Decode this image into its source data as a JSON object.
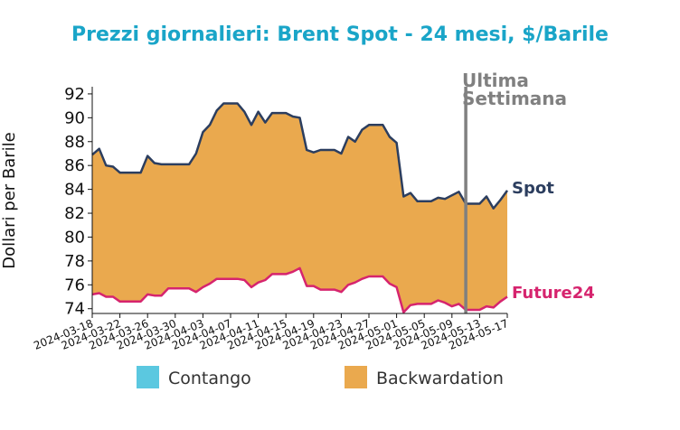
{
  "chart_data": {
    "type": "area",
    "title": "Prezzi giornalieri: Brent Spot - 24 mesi, $/Barile",
    "ylabel": "Dollari per Barile",
    "xlabel": "",
    "ylim": [
      73.6,
      92.6
    ],
    "yticks": [
      74,
      76,
      78,
      80,
      82,
      84,
      86,
      88,
      90,
      92
    ],
    "xticks": [
      "2024-03-18",
      "2024-03-22",
      "2024-03-26",
      "2024-03-30",
      "2024-04-03",
      "2024-04-07",
      "2024-04-11",
      "2024-04-15",
      "2024-04-19",
      "2024-04-23",
      "2024-04-27",
      "2024-05-01",
      "2024-05-05",
      "2024-05-09",
      "2024-05-13",
      "2024-05-17"
    ],
    "x": [
      "2024-03-18",
      "2024-03-19",
      "2024-03-20",
      "2024-03-21",
      "2024-03-22",
      "2024-03-23",
      "2024-03-24",
      "2024-03-25",
      "2024-03-26",
      "2024-03-27",
      "2024-03-28",
      "2024-03-29",
      "2024-03-30",
      "2024-03-31",
      "2024-04-01",
      "2024-04-02",
      "2024-04-03",
      "2024-04-04",
      "2024-04-05",
      "2024-04-06",
      "2024-04-07",
      "2024-04-08",
      "2024-04-09",
      "2024-04-10",
      "2024-04-11",
      "2024-04-12",
      "2024-04-13",
      "2024-04-14",
      "2024-04-15",
      "2024-04-16",
      "2024-04-17",
      "2024-04-18",
      "2024-04-19",
      "2024-04-20",
      "2024-04-21",
      "2024-04-22",
      "2024-04-23",
      "2024-04-24",
      "2024-04-25",
      "2024-04-26",
      "2024-04-27",
      "2024-04-28",
      "2024-04-29",
      "2024-04-30",
      "2024-05-01",
      "2024-05-02",
      "2024-05-03",
      "2024-05-04",
      "2024-05-05",
      "2024-05-06",
      "2024-05-07",
      "2024-05-08",
      "2024-05-09",
      "2024-05-10",
      "2024-05-11",
      "2024-05-12",
      "2024-05-13",
      "2024-05-14",
      "2024-05-15",
      "2024-05-16",
      "2024-05-17"
    ],
    "series": [
      {
        "name": "Spot",
        "color": "#2c3e5f",
        "values": [
          86.9,
          87.4,
          86.0,
          85.9,
          85.4,
          85.4,
          85.4,
          85.4,
          86.8,
          86.2,
          86.1,
          86.1,
          86.1,
          86.1,
          86.1,
          87.0,
          88.8,
          89.4,
          90.6,
          91.2,
          91.2,
          91.2,
          90.5,
          89.4,
          90.5,
          89.6,
          90.4,
          90.4,
          90.4,
          90.1,
          90.0,
          87.3,
          87.1,
          87.3,
          87.3,
          87.3,
          87.0,
          88.4,
          88.0,
          89.0,
          89.4,
          89.4,
          89.4,
          88.4,
          87.9,
          83.4,
          83.7,
          83.0,
          83.0,
          83.0,
          83.3,
          83.2,
          83.5,
          83.8,
          82.8,
          82.8,
          82.8,
          83.4,
          82.4,
          83.1,
          83.9
        ]
      },
      {
        "name": "Future24",
        "color": "#d6246e",
        "values": [
          75.2,
          75.3,
          75.0,
          75.0,
          74.6,
          74.6,
          74.6,
          74.6,
          75.2,
          75.1,
          75.1,
          75.7,
          75.7,
          75.7,
          75.7,
          75.4,
          75.8,
          76.1,
          76.5,
          76.5,
          76.5,
          76.5,
          76.4,
          75.8,
          76.2,
          76.4,
          76.9,
          76.9,
          76.9,
          77.1,
          77.4,
          75.9,
          75.9,
          75.6,
          75.6,
          75.6,
          75.4,
          76.0,
          76.2,
          76.5,
          76.7,
          76.7,
          76.7,
          76.1,
          75.8,
          73.7,
          74.3,
          74.4,
          74.4,
          74.4,
          74.7,
          74.5,
          74.2,
          74.4,
          73.9,
          73.9,
          73.9,
          74.2,
          74.1,
          74.6,
          75.0
        ]
      }
    ],
    "fill_colors": {
      "Backwardation": "#eaa94e",
      "Contango": "#5bc8e0"
    },
    "vline": {
      "x": "2024-05-11",
      "label_line1": "Ultima",
      "label_line2": "Settimana",
      "color": "#808080"
    },
    "end_labels": {
      "spot": "Spot",
      "future": "Future24"
    },
    "legend": [
      {
        "label": "Contango",
        "color": "#5bc8e0"
      },
      {
        "label": "Backwardation",
        "color": "#eaa94e"
      }
    ],
    "legend_position": "bottom",
    "grid": false
  }
}
